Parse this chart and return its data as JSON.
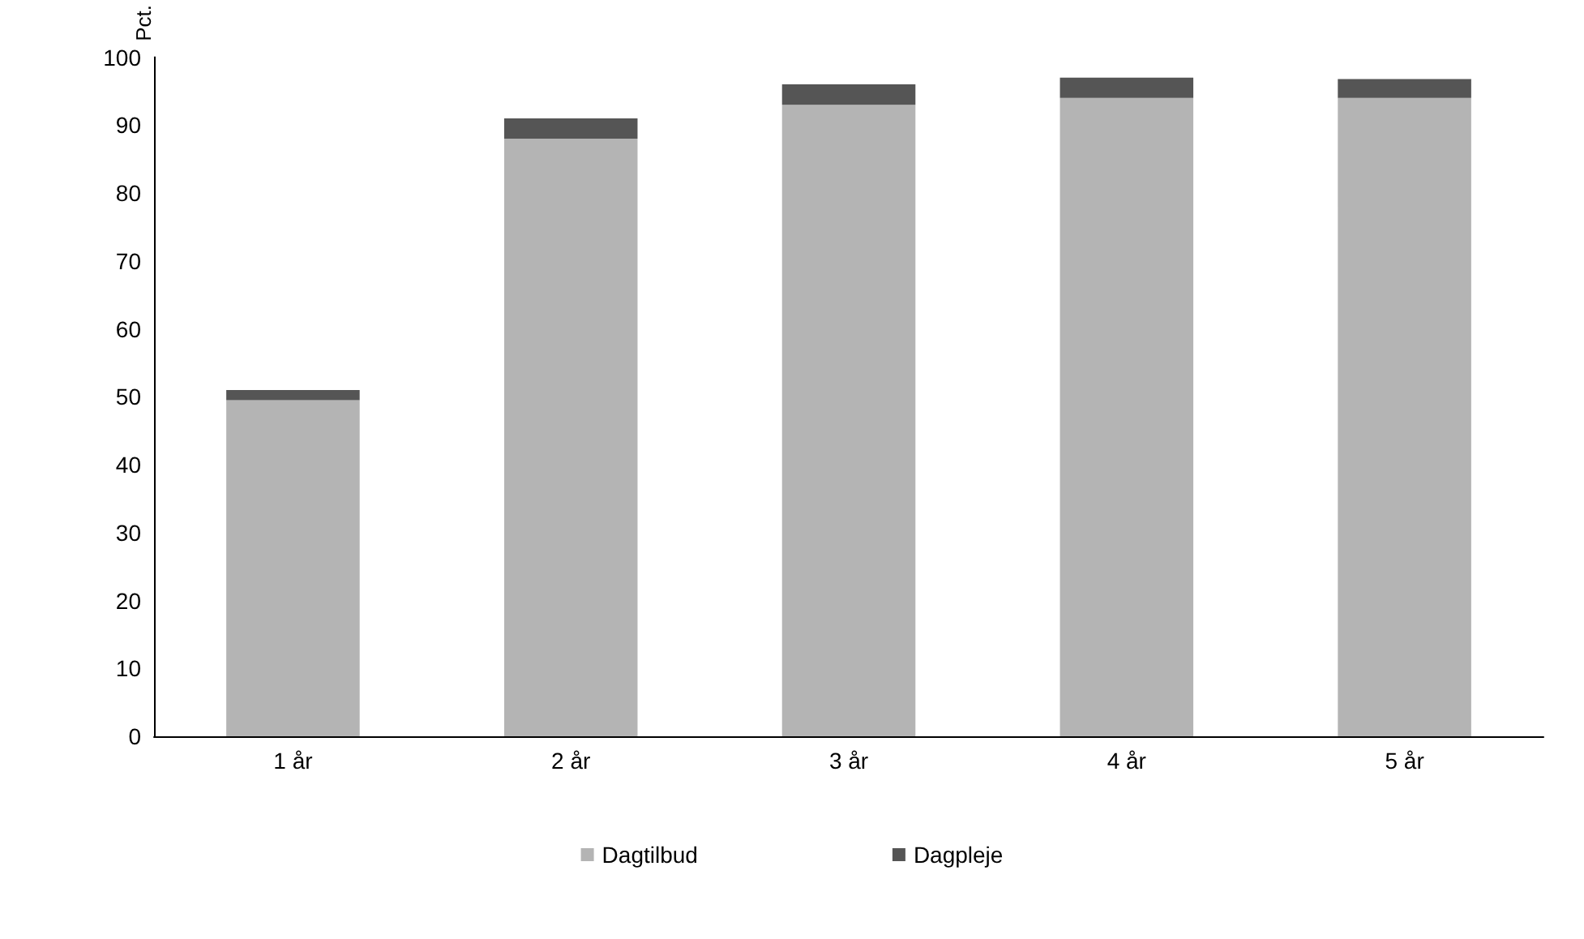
{
  "chart_data": {
    "type": "bar",
    "stacked": true,
    "ylabel": "Pct.",
    "categories": [
      "1 år",
      "2 år",
      "3 år",
      "4 år",
      "5 år"
    ],
    "series": [
      {
        "name": "Dagtilbud",
        "color": "#b4b4b4",
        "values": [
          49.5,
          88,
          93,
          94,
          94
        ]
      },
      {
        "name": "Dagpleje",
        "color": "#555555",
        "values": [
          1.5,
          3,
          3,
          3,
          2.8
        ]
      }
    ],
    "ylim": [
      0,
      100
    ],
    "yticks": [
      0,
      10,
      20,
      30,
      40,
      50,
      60,
      70,
      80,
      90,
      100
    ],
    "grid": false,
    "legend": "bottom"
  }
}
